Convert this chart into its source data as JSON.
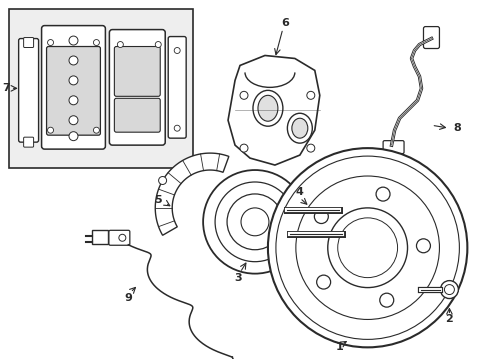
{
  "bg_color": "#ffffff",
  "line_color": "#2a2a2a",
  "box_bg": "#eeeeee",
  "fig_width": 4.89,
  "fig_height": 3.6,
  "dpi": 100
}
